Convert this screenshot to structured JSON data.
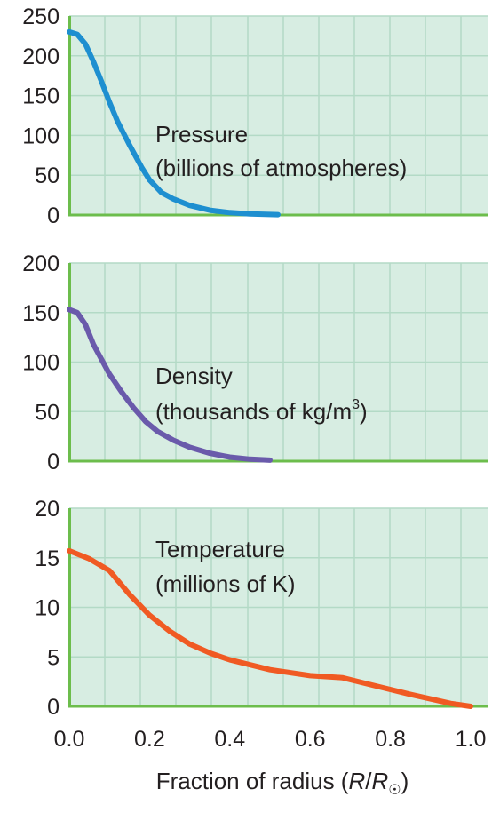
{
  "chart_data": [
    {
      "type": "line",
      "ylim": [
        0,
        250
      ],
      "yticks": [
        "250",
        "200",
        "150",
        "100",
        "50",
        "0"
      ],
      "xlim": [
        0,
        1.0
      ],
      "grid": true,
      "label_line1": "Pressure",
      "label_line2": "(billions of atmospheres)",
      "series": [
        {
          "color": "#1e8fd0",
          "x": [
            0.0,
            0.02,
            0.04,
            0.06,
            0.08,
            0.1,
            0.12,
            0.15,
            0.18,
            0.2,
            0.23,
            0.26,
            0.3,
            0.35,
            0.4,
            0.45,
            0.52
          ],
          "y": [
            230,
            227,
            215,
            193,
            168,
            142,
            118,
            88,
            60,
            44,
            28,
            20,
            12,
            6,
            3,
            1.5,
            0.5
          ]
        }
      ]
    },
    {
      "type": "line",
      "ylim": [
        0,
        200
      ],
      "yticks": [
        "200",
        "150",
        "100",
        "50",
        "0"
      ],
      "xlim": [
        0,
        1.0
      ],
      "grid": true,
      "label_line1": "Density",
      "label_line2_main": "(thousands of kg/m",
      "label_line2_sup": "3",
      "label_line2_end": ")",
      "series": [
        {
          "color": "#6a5aab",
          "x": [
            0.0,
            0.02,
            0.04,
            0.06,
            0.08,
            0.1,
            0.13,
            0.16,
            0.19,
            0.22,
            0.26,
            0.3,
            0.35,
            0.4,
            0.45,
            0.5
          ],
          "y": [
            153,
            150,
            138,
            118,
            103,
            88,
            70,
            54,
            40,
            30,
            21,
            14,
            8,
            4,
            2,
            1
          ]
        }
      ]
    },
    {
      "type": "line",
      "ylim": [
        0,
        20
      ],
      "yticks": [
        "20",
        "15",
        "10",
        "5",
        "0"
      ],
      "xlim": [
        0,
        1.0
      ],
      "grid": true,
      "label_line1": "Temperature",
      "label_line2": "(millions of K)",
      "series": [
        {
          "color": "#f05a23",
          "x": [
            0.0,
            0.05,
            0.1,
            0.15,
            0.2,
            0.25,
            0.3,
            0.35,
            0.4,
            0.5,
            0.6,
            0.68,
            0.75,
            0.85,
            0.95,
            1.0
          ],
          "y": [
            15.7,
            14.9,
            13.7,
            11.3,
            9.2,
            7.6,
            6.3,
            5.4,
            4.7,
            3.7,
            3.1,
            2.9,
            2.2,
            1.2,
            0.3,
            0.0
          ]
        }
      ]
    }
  ],
  "xaxis": {
    "ticks": [
      "0.0",
      "0.2",
      "0.4",
      "0.6",
      "0.8",
      "1.0"
    ],
    "tick_values": [
      0,
      0.2,
      0.4,
      0.6,
      0.8,
      1.0
    ],
    "label_prefix": "Fraction of radius (",
    "label_R": "R",
    "label_slash": "/",
    "label_Rsun": "R",
    "label_sun_symbol": "☉",
    "label_suffix": ")"
  },
  "colors": {
    "panel_background": "#d7ede2",
    "grid": "#b3dac6",
    "axis": "#6cbd4c"
  }
}
